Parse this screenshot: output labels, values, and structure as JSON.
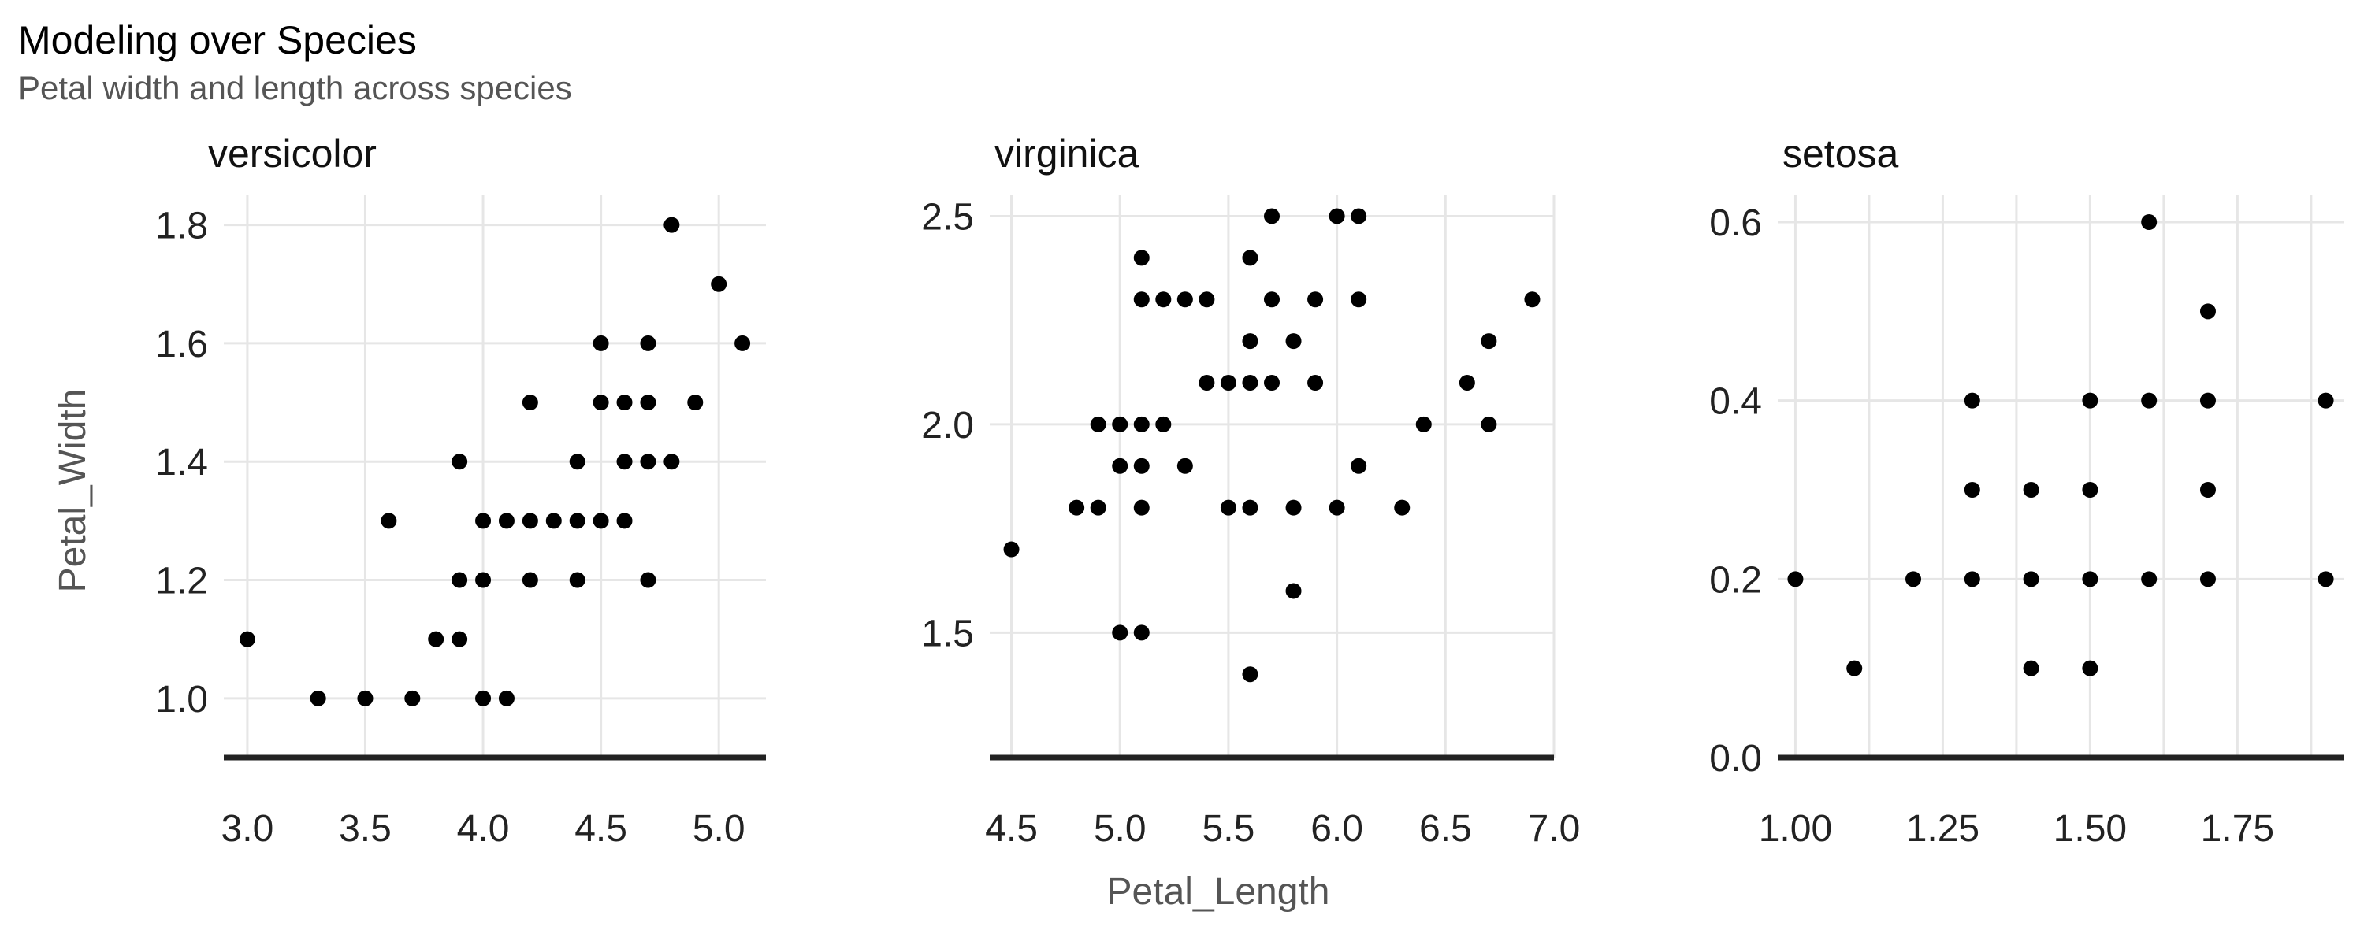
{
  "title": "Modeling over Species",
  "subtitle": "Petal width and length across species",
  "xlabel": "Petal_Length",
  "ylabel": "Petal_Width",
  "chart_data": [
    {
      "type": "scatter",
      "panel": "versicolor",
      "xlim": [
        2.9,
        5.2
      ],
      "ylim": [
        0.9,
        1.85
      ],
      "x_ticks": [
        "3.0",
        "3.5",
        "4.0",
        "4.5",
        "5.0"
      ],
      "y_ticks": [
        "1.0",
        "1.2",
        "1.4",
        "1.6",
        "1.8"
      ],
      "x_grid": [
        3.0,
        3.5,
        4.0,
        4.5,
        5.0
      ],
      "y_grid": [
        1.0,
        1.2,
        1.4,
        1.6,
        1.8
      ],
      "points": [
        [
          3.0,
          1.1
        ],
        [
          3.3,
          1.0
        ],
        [
          3.5,
          1.0
        ],
        [
          3.6,
          1.3
        ],
        [
          3.7,
          1.0
        ],
        [
          3.8,
          1.1
        ],
        [
          3.9,
          1.4
        ],
        [
          3.9,
          1.2
        ],
        [
          3.9,
          1.1
        ],
        [
          4.0,
          1.3
        ],
        [
          4.0,
          1.2
        ],
        [
          4.0,
          1.0
        ],
        [
          4.1,
          1.3
        ],
        [
          4.1,
          1.0
        ],
        [
          4.2,
          1.5
        ],
        [
          4.2,
          1.3
        ],
        [
          4.2,
          1.2
        ],
        [
          4.3,
          1.3
        ],
        [
          4.4,
          1.4
        ],
        [
          4.4,
          1.3
        ],
        [
          4.4,
          1.2
        ],
        [
          4.5,
          1.6
        ],
        [
          4.5,
          1.5
        ],
        [
          4.5,
          1.3
        ],
        [
          4.6,
          1.5
        ],
        [
          4.6,
          1.4
        ],
        [
          4.6,
          1.3
        ],
        [
          4.7,
          1.6
        ],
        [
          4.7,
          1.5
        ],
        [
          4.7,
          1.4
        ],
        [
          4.7,
          1.2
        ],
        [
          4.8,
          1.8
        ],
        [
          4.8,
          1.4
        ],
        [
          4.9,
          1.5
        ],
        [
          5.0,
          1.7
        ],
        [
          5.1,
          1.6
        ]
      ]
    },
    {
      "type": "scatter",
      "panel": "virginica",
      "xlim": [
        4.4,
        7.0
      ],
      "ylim": [
        1.2,
        2.55
      ],
      "x_ticks": [
        "4.5",
        "5.0",
        "5.5",
        "6.0",
        "6.5",
        "7.0"
      ],
      "y_ticks": [
        "1.5",
        "2.0",
        "2.5"
      ],
      "x_grid": [
        4.5,
        5.0,
        5.5,
        6.0,
        6.5,
        7.0
      ],
      "y_grid": [
        1.5,
        2.0,
        2.5
      ],
      "points": [
        [
          4.5,
          1.7
        ],
        [
          4.8,
          1.8
        ],
        [
          4.9,
          1.8
        ],
        [
          4.9,
          2.0
        ],
        [
          5.0,
          2.0
        ],
        [
          5.0,
          1.9
        ],
        [
          5.0,
          1.5
        ],
        [
          5.1,
          2.4
        ],
        [
          5.1,
          2.3
        ],
        [
          5.1,
          2.0
        ],
        [
          5.1,
          1.9
        ],
        [
          5.1,
          1.8
        ],
        [
          5.1,
          1.5
        ],
        [
          5.2,
          2.3
        ],
        [
          5.2,
          2.0
        ],
        [
          5.3,
          2.3
        ],
        [
          5.3,
          1.9
        ],
        [
          5.4,
          2.3
        ],
        [
          5.4,
          2.1
        ],
        [
          5.5,
          2.1
        ],
        [
          5.5,
          1.8
        ],
        [
          5.6,
          2.4
        ],
        [
          5.6,
          2.2
        ],
        [
          5.6,
          2.1
        ],
        [
          5.6,
          1.8
        ],
        [
          5.6,
          1.4
        ],
        [
          5.7,
          2.5
        ],
        [
          5.7,
          2.3
        ],
        [
          5.7,
          2.1
        ],
        [
          5.8,
          2.2
        ],
        [
          5.8,
          1.8
        ],
        [
          5.8,
          1.6
        ],
        [
          5.9,
          2.3
        ],
        [
          5.9,
          2.1
        ],
        [
          6.0,
          2.5
        ],
        [
          6.0,
          1.8
        ],
        [
          6.1,
          2.5
        ],
        [
          6.1,
          2.3
        ],
        [
          6.1,
          1.9
        ],
        [
          6.3,
          1.8
        ],
        [
          6.4,
          2.0
        ],
        [
          6.6,
          2.1
        ],
        [
          6.7,
          2.2
        ],
        [
          6.7,
          2.0
        ],
        [
          6.9,
          2.3
        ]
      ]
    },
    {
      "type": "scatter",
      "panel": "setosa",
      "xlim": [
        0.97,
        1.93
      ],
      "ylim": [
        0.0,
        0.63
      ],
      "x_ticks": [
        "1.00",
        "1.25",
        "1.50",
        "1.75"
      ],
      "y_ticks": [
        "0.0",
        "0.2",
        "0.4",
        "0.6"
      ],
      "x_grid": [
        1.0,
        1.125,
        1.25,
        1.375,
        1.5,
        1.625,
        1.75,
        1.875
      ],
      "y_grid": [
        0.0,
        0.2,
        0.4,
        0.6
      ],
      "points": [
        [
          1.0,
          0.2
        ],
        [
          1.1,
          0.1
        ],
        [
          1.2,
          0.2
        ],
        [
          1.3,
          0.4
        ],
        [
          1.3,
          0.3
        ],
        [
          1.3,
          0.2
        ],
        [
          1.4,
          0.3
        ],
        [
          1.4,
          0.2
        ],
        [
          1.4,
          0.1
        ],
        [
          1.5,
          0.4
        ],
        [
          1.5,
          0.3
        ],
        [
          1.5,
          0.2
        ],
        [
          1.5,
          0.1
        ],
        [
          1.6,
          0.6
        ],
        [
          1.6,
          0.4
        ],
        [
          1.6,
          0.2
        ],
        [
          1.7,
          0.5
        ],
        [
          1.7,
          0.4
        ],
        [
          1.7,
          0.3
        ],
        [
          1.7,
          0.2
        ],
        [
          1.9,
          0.4
        ],
        [
          1.9,
          0.2
        ]
      ]
    }
  ]
}
